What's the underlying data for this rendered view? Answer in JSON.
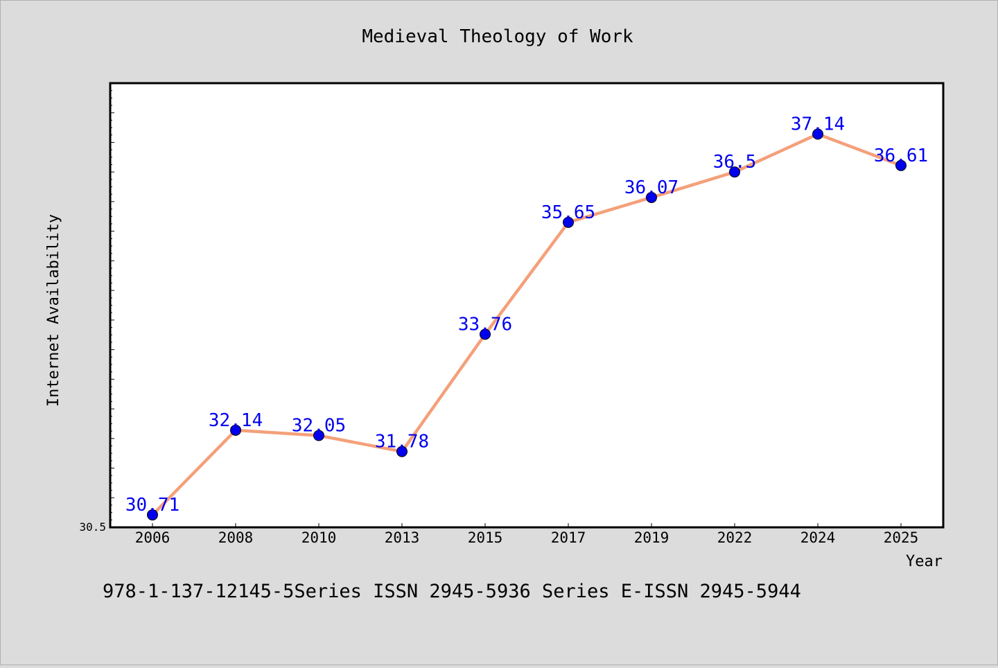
{
  "chart_data": {
    "type": "line",
    "title": "Medieval Theology of Work",
    "xlabel": "Year",
    "ylabel": "Internet Availability",
    "categories": [
      "2006",
      "2008",
      "2010",
      "2013",
      "2015",
      "2017",
      "2019",
      "2022",
      "2024",
      "2025"
    ],
    "values": [
      30.71,
      32.14,
      32.05,
      31.78,
      33.76,
      35.65,
      36.07,
      36.5,
      37.14,
      36.61
    ],
    "data_labels": [
      "30.71",
      "32.14",
      "32.05",
      "31.78",
      "33.76",
      "35.65",
      "36.07",
      "36.5",
      "37.14",
      "36.61"
    ],
    "ylim": [
      30.5,
      38.0
    ],
    "y_tick_labels": [
      "30.5"
    ],
    "grid": false,
    "legend": "none",
    "footnote": "978-1-137-12145-5Series ISSN 2945-5936 Series E-ISSN 2945-5944",
    "colors": {
      "background": "#dcdcdc",
      "plot_area": "#ffffff",
      "line": "#f4a07a",
      "marker": "#0000ee",
      "data_label": "#0000ee"
    }
  }
}
